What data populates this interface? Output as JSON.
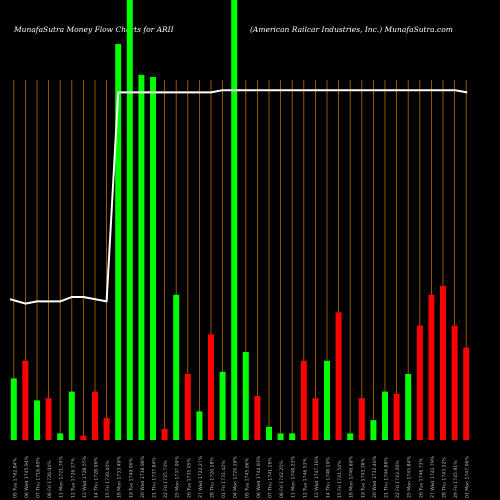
{
  "header": {
    "left": "MunafaSutra  Money Flow  Charts for ARII",
    "right": "(American  Railcar Industries,  Inc.) MunafaSutra.com"
  },
  "colors": {
    "background": "#000000",
    "grid": "#b86b00",
    "up": "#00ff00",
    "down": "#ff0000",
    "line": "#ffffff",
    "label": "#bbbbbb"
  },
  "chart_data": {
    "type": "bar",
    "title": "MunafaSutra  Money Flow  Charts for ARII",
    "ylim": [
      0,
      100
    ],
    "line_ylim": [
      0,
      100
    ],
    "grid": "vertical",
    "categories": [
      "05 Tue 1762.84%",
      "06 Wed 1745.94%",
      "07 Thu 1718.60%",
      "08 Fri 1726.04%",
      "11 Mon 1721.70%",
      "12 Tue 1726.37%",
      "13 Wed 1728.55%",
      "14 Thu 1728.06%",
      "15 Fri 1730.44%",
      "18 Mon 1733.49%",
      "19 Tue 1749.00%",
      "20 Wed 1738.98%",
      "21 Thu 1737.84%",
      "22 Fri 1725.73%",
      "25 Mon 1737.09%",
      "26 Tue 1735.05%",
      "27 Wed 1722.27%",
      "28 Thu 1726.18%",
      "01 Fri 1731.42%",
      "04 Mon 1726.19%",
      "05 Tue 1745.06%",
      "06 Wed 1744.93%",
      "07 Thu 1741.16%",
      "08 Fri 1742.25%",
      "11 Mon 1748.23%",
      "12 Tue 1746.53%",
      "13 Wed 1747.16%",
      "14 Thu 1748.19%",
      "15 Fri 1741.54%",
      "18 Mon 1746.69%",
      "19 Tue 1743.38%",
      "20 Wed 1732.46%",
      "21 Thu 1744.86%",
      "22 Fri 1743.26%",
      "25 Mon 1745.84%",
      "26 Tue 1746.73%",
      "27 Wed 1741.79%",
      "28 Thu 1743.32%",
      "29 Fri 1745.91%",
      "01 Mon 1747.06%"
    ],
    "series": [
      {
        "values": [
          14,
          18,
          9,
          9.5,
          1.5,
          11,
          1,
          11,
          5,
          90,
          100,
          83,
          82.5,
          2.5,
          33,
          15,
          6.5,
          24,
          15.5,
          100,
          20,
          10,
          3,
          1.5,
          1.5,
          18,
          9.5,
          18,
          29,
          1.5,
          9.5,
          4.5,
          11,
          10.5,
          15,
          26,
          33,
          35,
          26,
          21
        ],
        "directions": [
          "up",
          "down",
          "up",
          "down",
          "up",
          "up",
          "down",
          "down",
          "down",
          "up",
          "up",
          "up",
          "up",
          "down",
          "up",
          "down",
          "up",
          "down",
          "up",
          "up",
          "up",
          "down",
          "up",
          "up",
          "up",
          "down",
          "down",
          "up",
          "down",
          "up",
          "down",
          "up",
          "up",
          "down",
          "up",
          "down",
          "down",
          "down",
          "down",
          "down"
        ]
      },
      {
        "values": [
          32,
          31,
          31.5,
          31.5,
          31.5,
          32.5,
          32.5,
          32,
          31.5,
          79,
          79,
          79,
          79,
          79,
          79,
          79,
          79,
          79,
          79.5,
          79.5,
          79.5,
          79.5,
          79.5,
          79.5,
          79.5,
          79.5,
          79.5,
          79.5,
          79.5,
          79.5,
          79.5,
          79.5,
          79.5,
          79.5,
          79.5,
          79.5,
          79.5,
          79.5,
          79.5,
          79
        ]
      }
    ]
  }
}
